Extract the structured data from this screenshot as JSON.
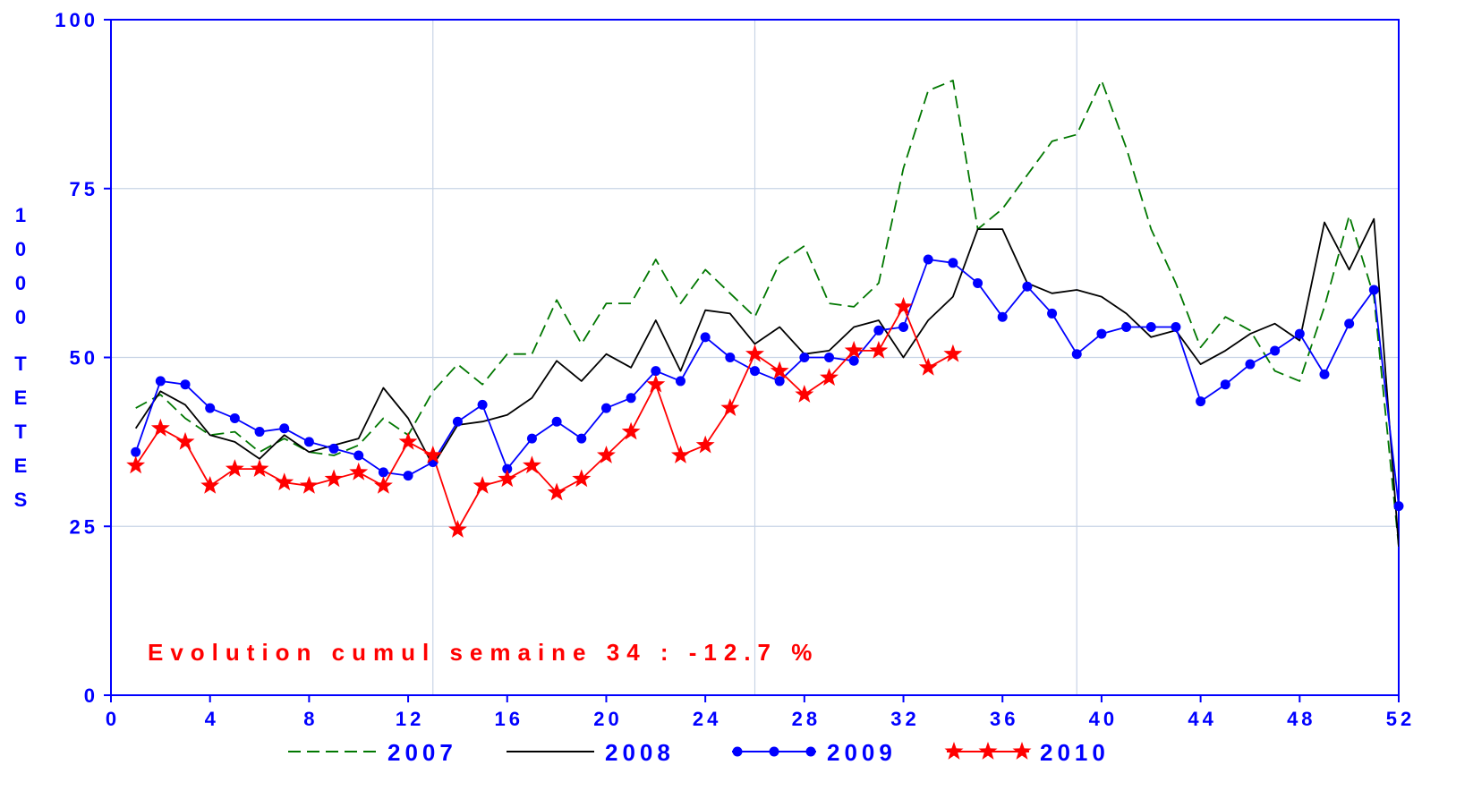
{
  "chart_data": {
    "type": "line",
    "ylabel": "1000 TETES",
    "xlim": [
      0,
      52
    ],
    "ylim": [
      0,
      100
    ],
    "xticks": [
      0,
      4,
      8,
      12,
      16,
      20,
      24,
      28,
      32,
      36,
      40,
      44,
      48,
      52
    ],
    "yticks": [
      0,
      25,
      50,
      75,
      100
    ],
    "grid": true,
    "legend_position": "bottom",
    "annotation": "Evolution cumul semaine 34 : -12.7 %",
    "colors": {
      "axis_text": "#0000ff",
      "frame": "#0000ff",
      "grid": "#c8d4e6",
      "annotation": "#ff0000"
    },
    "series": [
      {
        "name": "2007",
        "color": "#007700",
        "style": "dashed",
        "marker": "none",
        "x": [
          1,
          2,
          3,
          4,
          5,
          6,
          7,
          8,
          9,
          10,
          11,
          12,
          13,
          14,
          15,
          16,
          17,
          18,
          19,
          20,
          21,
          22,
          23,
          24,
          25,
          26,
          27,
          28,
          29,
          30,
          31,
          32,
          33,
          34,
          35,
          36,
          37,
          38,
          39,
          40,
          41,
          42,
          43,
          44,
          45,
          46,
          47,
          48,
          49,
          50,
          51,
          52
        ],
        "values": [
          42.5,
          44.5,
          41,
          38.5,
          39,
          36,
          38,
          36,
          35.5,
          37,
          41,
          38.5,
          45,
          49,
          46,
          50.5,
          50.5,
          58.5,
          52,
          58,
          58,
          64.5,
          58,
          63,
          59.5,
          56,
          64,
          66.5,
          58,
          57.5,
          61,
          78,
          89.5,
          91,
          69,
          72,
          77,
          82,
          83,
          91,
          81,
          69,
          61,
          51.5,
          56,
          54,
          48,
          46.5,
          57.5,
          71,
          59,
          22
        ]
      },
      {
        "name": "2008",
        "color": "#000000",
        "style": "solid",
        "marker": "none",
        "x": [
          1,
          2,
          3,
          4,
          5,
          6,
          7,
          8,
          9,
          10,
          11,
          12,
          13,
          14,
          15,
          16,
          17,
          18,
          19,
          20,
          21,
          22,
          23,
          24,
          25,
          26,
          27,
          28,
          29,
          30,
          31,
          32,
          33,
          34,
          35,
          36,
          37,
          38,
          39,
          40,
          41,
          42,
          43,
          44,
          45,
          46,
          47,
          48,
          49,
          50,
          51,
          52
        ],
        "values": [
          39.5,
          45,
          43,
          38.5,
          37.5,
          35,
          38.5,
          36,
          37,
          38,
          45.5,
          41,
          34,
          40,
          40.5,
          41.5,
          44,
          49.5,
          46.5,
          50.5,
          48.5,
          55.5,
          48,
          57,
          56.5,
          52,
          54.5,
          50.5,
          51,
          54.5,
          55.5,
          50,
          55.5,
          59,
          69,
          69,
          61,
          59.5,
          60,
          59,
          56.5,
          53,
          54,
          49,
          51,
          53.5,
          55,
          52.5,
          70,
          63,
          70.5,
          22
        ]
      },
      {
        "name": "2009",
        "color": "#0000ff",
        "style": "solid",
        "marker": "circle",
        "x": [
          1,
          2,
          3,
          4,
          5,
          6,
          7,
          8,
          9,
          10,
          11,
          12,
          13,
          14,
          15,
          16,
          17,
          18,
          19,
          20,
          21,
          22,
          23,
          24,
          25,
          26,
          27,
          28,
          29,
          30,
          31,
          32,
          33,
          34,
          35,
          36,
          37,
          38,
          39,
          40,
          41,
          42,
          43,
          44,
          45,
          46,
          47,
          48,
          49,
          50,
          51,
          52
        ],
        "values": [
          36,
          46.5,
          46,
          42.5,
          41,
          39,
          39.5,
          37.5,
          36.5,
          35.5,
          33,
          32.5,
          34.5,
          40.5,
          43,
          33.5,
          38,
          40.5,
          38,
          42.5,
          44,
          48,
          46.5,
          53,
          50,
          48,
          46.5,
          50,
          50,
          49.5,
          54,
          54.5,
          64.5,
          64,
          61,
          56,
          60.5,
          56.5,
          50.5,
          53.5,
          54.5,
          54.5,
          54.5,
          43.5,
          46,
          49,
          51,
          53.5,
          47.5,
          55,
          60,
          28
        ]
      },
      {
        "name": "2010",
        "color": "#ff0000",
        "style": "solid",
        "marker": "star",
        "x": [
          1,
          2,
          3,
          4,
          5,
          6,
          7,
          8,
          9,
          10,
          11,
          12,
          13,
          14,
          15,
          16,
          17,
          18,
          19,
          20,
          21,
          22,
          23,
          24,
          25,
          26,
          27,
          28,
          29,
          30,
          31,
          32,
          33,
          34
        ],
        "values": [
          34,
          39.5,
          37.5,
          31,
          33.5,
          33.5,
          31.5,
          31,
          32,
          33,
          31,
          37.5,
          35.5,
          24.5,
          31,
          32,
          34,
          30,
          32,
          35.5,
          39,
          46,
          35.5,
          37,
          42.5,
          50.5,
          48,
          44.5,
          47,
          51,
          51,
          57.5,
          48.5,
          50.5
        ]
      }
    ]
  }
}
